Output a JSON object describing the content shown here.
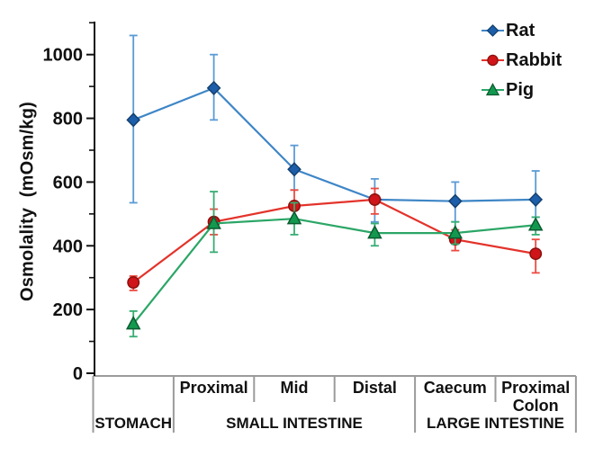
{
  "chart_data": {
    "type": "line",
    "title": "",
    "xlabel": "",
    "ylabel": "Osmolality  (mOsm/kg)",
    "ylim": [
      0,
      1100
    ],
    "yticks": [
      0,
      200,
      400,
      600,
      800,
      1000
    ],
    "minor_yticks": [
      100,
      300,
      500,
      700,
      900,
      1100
    ],
    "grid": false,
    "legend_position": "top-right",
    "categories": [
      "Stomach",
      "Proximal",
      "Mid",
      "Distal",
      "Caecum",
      "Proximal Colon"
    ],
    "x_sublabels": [
      "",
      "Proximal",
      "Mid",
      "Distal",
      "Caecum",
      "Proximal\nColon"
    ],
    "x_groups": [
      {
        "label": "STOMACH",
        "span": [
          0,
          1
        ]
      },
      {
        "label": "SMALL INTESTINE",
        "span": [
          1,
          4
        ]
      },
      {
        "label": "LARGE INTESTINE",
        "span": [
          4,
          6
        ]
      }
    ],
    "units": "mOsm/kg",
    "series": [
      {
        "name": "Rat",
        "marker": "diamond",
        "color_line": "#3E86C6",
        "color_fill": "#1C5EA9",
        "color_edge": "#14406F",
        "color_err": "#5B9BD5",
        "values": [
          795,
          895,
          640,
          545,
          540,
          545
        ],
        "err_low": [
          535,
          795,
          575,
          475,
          475,
          490
        ],
        "err_high": [
          1060,
          1000,
          715,
          610,
          600,
          635
        ]
      },
      {
        "name": "Rabbit",
        "marker": "circle",
        "color_line": "#E3332B",
        "color_fill": "#CF1519",
        "color_edge": "#8A100D",
        "color_err": "#EC4A41",
        "values": [
          285,
          475,
          525,
          545,
          420,
          375
        ],
        "err_low": [
          260,
          435,
          485,
          500,
          385,
          315
        ],
        "err_high": [
          305,
          515,
          575,
          580,
          450,
          420
        ]
      },
      {
        "name": "Pig",
        "marker": "triangle",
        "color_line": "#2BA666",
        "color_fill": "#13994F",
        "color_edge": "#0A5B30",
        "color_err": "#36AD72",
        "values": [
          155,
          470,
          485,
          440,
          440,
          465
        ],
        "err_low": [
          115,
          380,
          435,
          400,
          405,
          435
        ],
        "err_high": [
          195,
          570,
          535,
          470,
          475,
          490
        ]
      }
    ]
  },
  "axis_colors": {
    "axis": "#111111",
    "table_lines": "#9B9B9B",
    "text": "#111111"
  }
}
